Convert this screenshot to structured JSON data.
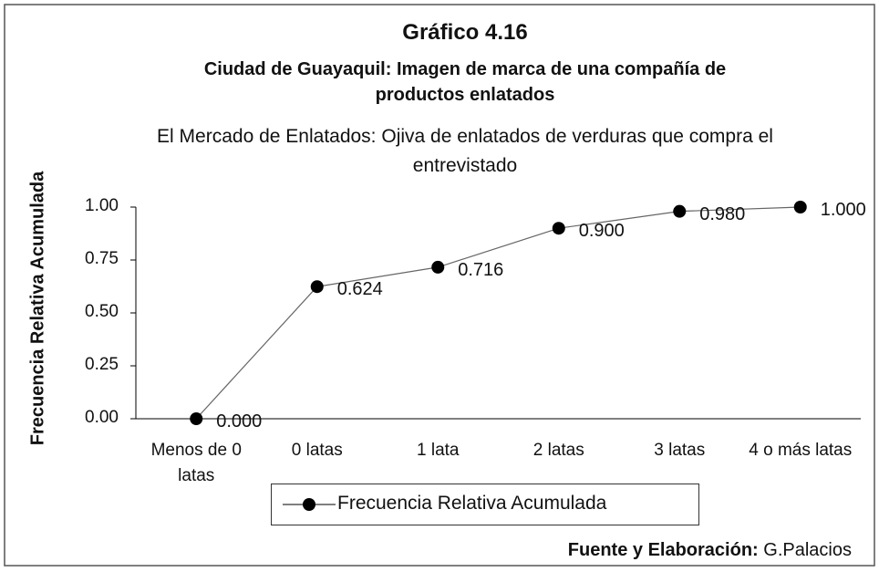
{
  "chart_data": {
    "type": "line",
    "title": "Gráfico 4.16",
    "title2": "Ciudad de Guayaquil: Imagen de marca de una compañía de productos enlatados",
    "subtitle": "El Mercado de Enlatados: Ojiva de enlatados de verduras que compra el entrevistado",
    "y_label": "Frecuencia Relativa Acumulada",
    "categories": [
      "Menos de 0 latas",
      "0 latas",
      "1 lata",
      "2 latas",
      "3 latas",
      "4 o más latas"
    ],
    "series": [
      {
        "name": "Frecuencia Relativa Acumulada",
        "color": "#000000",
        "values": [
          0,
          0.624,
          0.716,
          0.9,
          0.98,
          1.0
        ],
        "value_labels": [
          "0.000",
          "0.624",
          "0.716",
          "0.900",
          "0.980",
          "1.000"
        ]
      }
    ],
    "ylim": [
      0,
      1
    ],
    "yticks": [
      {
        "value": 0,
        "label": "0.00"
      },
      {
        "value": 0.25,
        "label": "0.25"
      },
      {
        "value": 0.5,
        "label": "0.50"
      },
      {
        "value": 0.75,
        "label": "0.75"
      },
      {
        "value": 1,
        "label": "1.00"
      }
    ],
    "legend": "bottom",
    "source_label": "Fuente y Elaboración:",
    "source": "G.Palacios"
  }
}
